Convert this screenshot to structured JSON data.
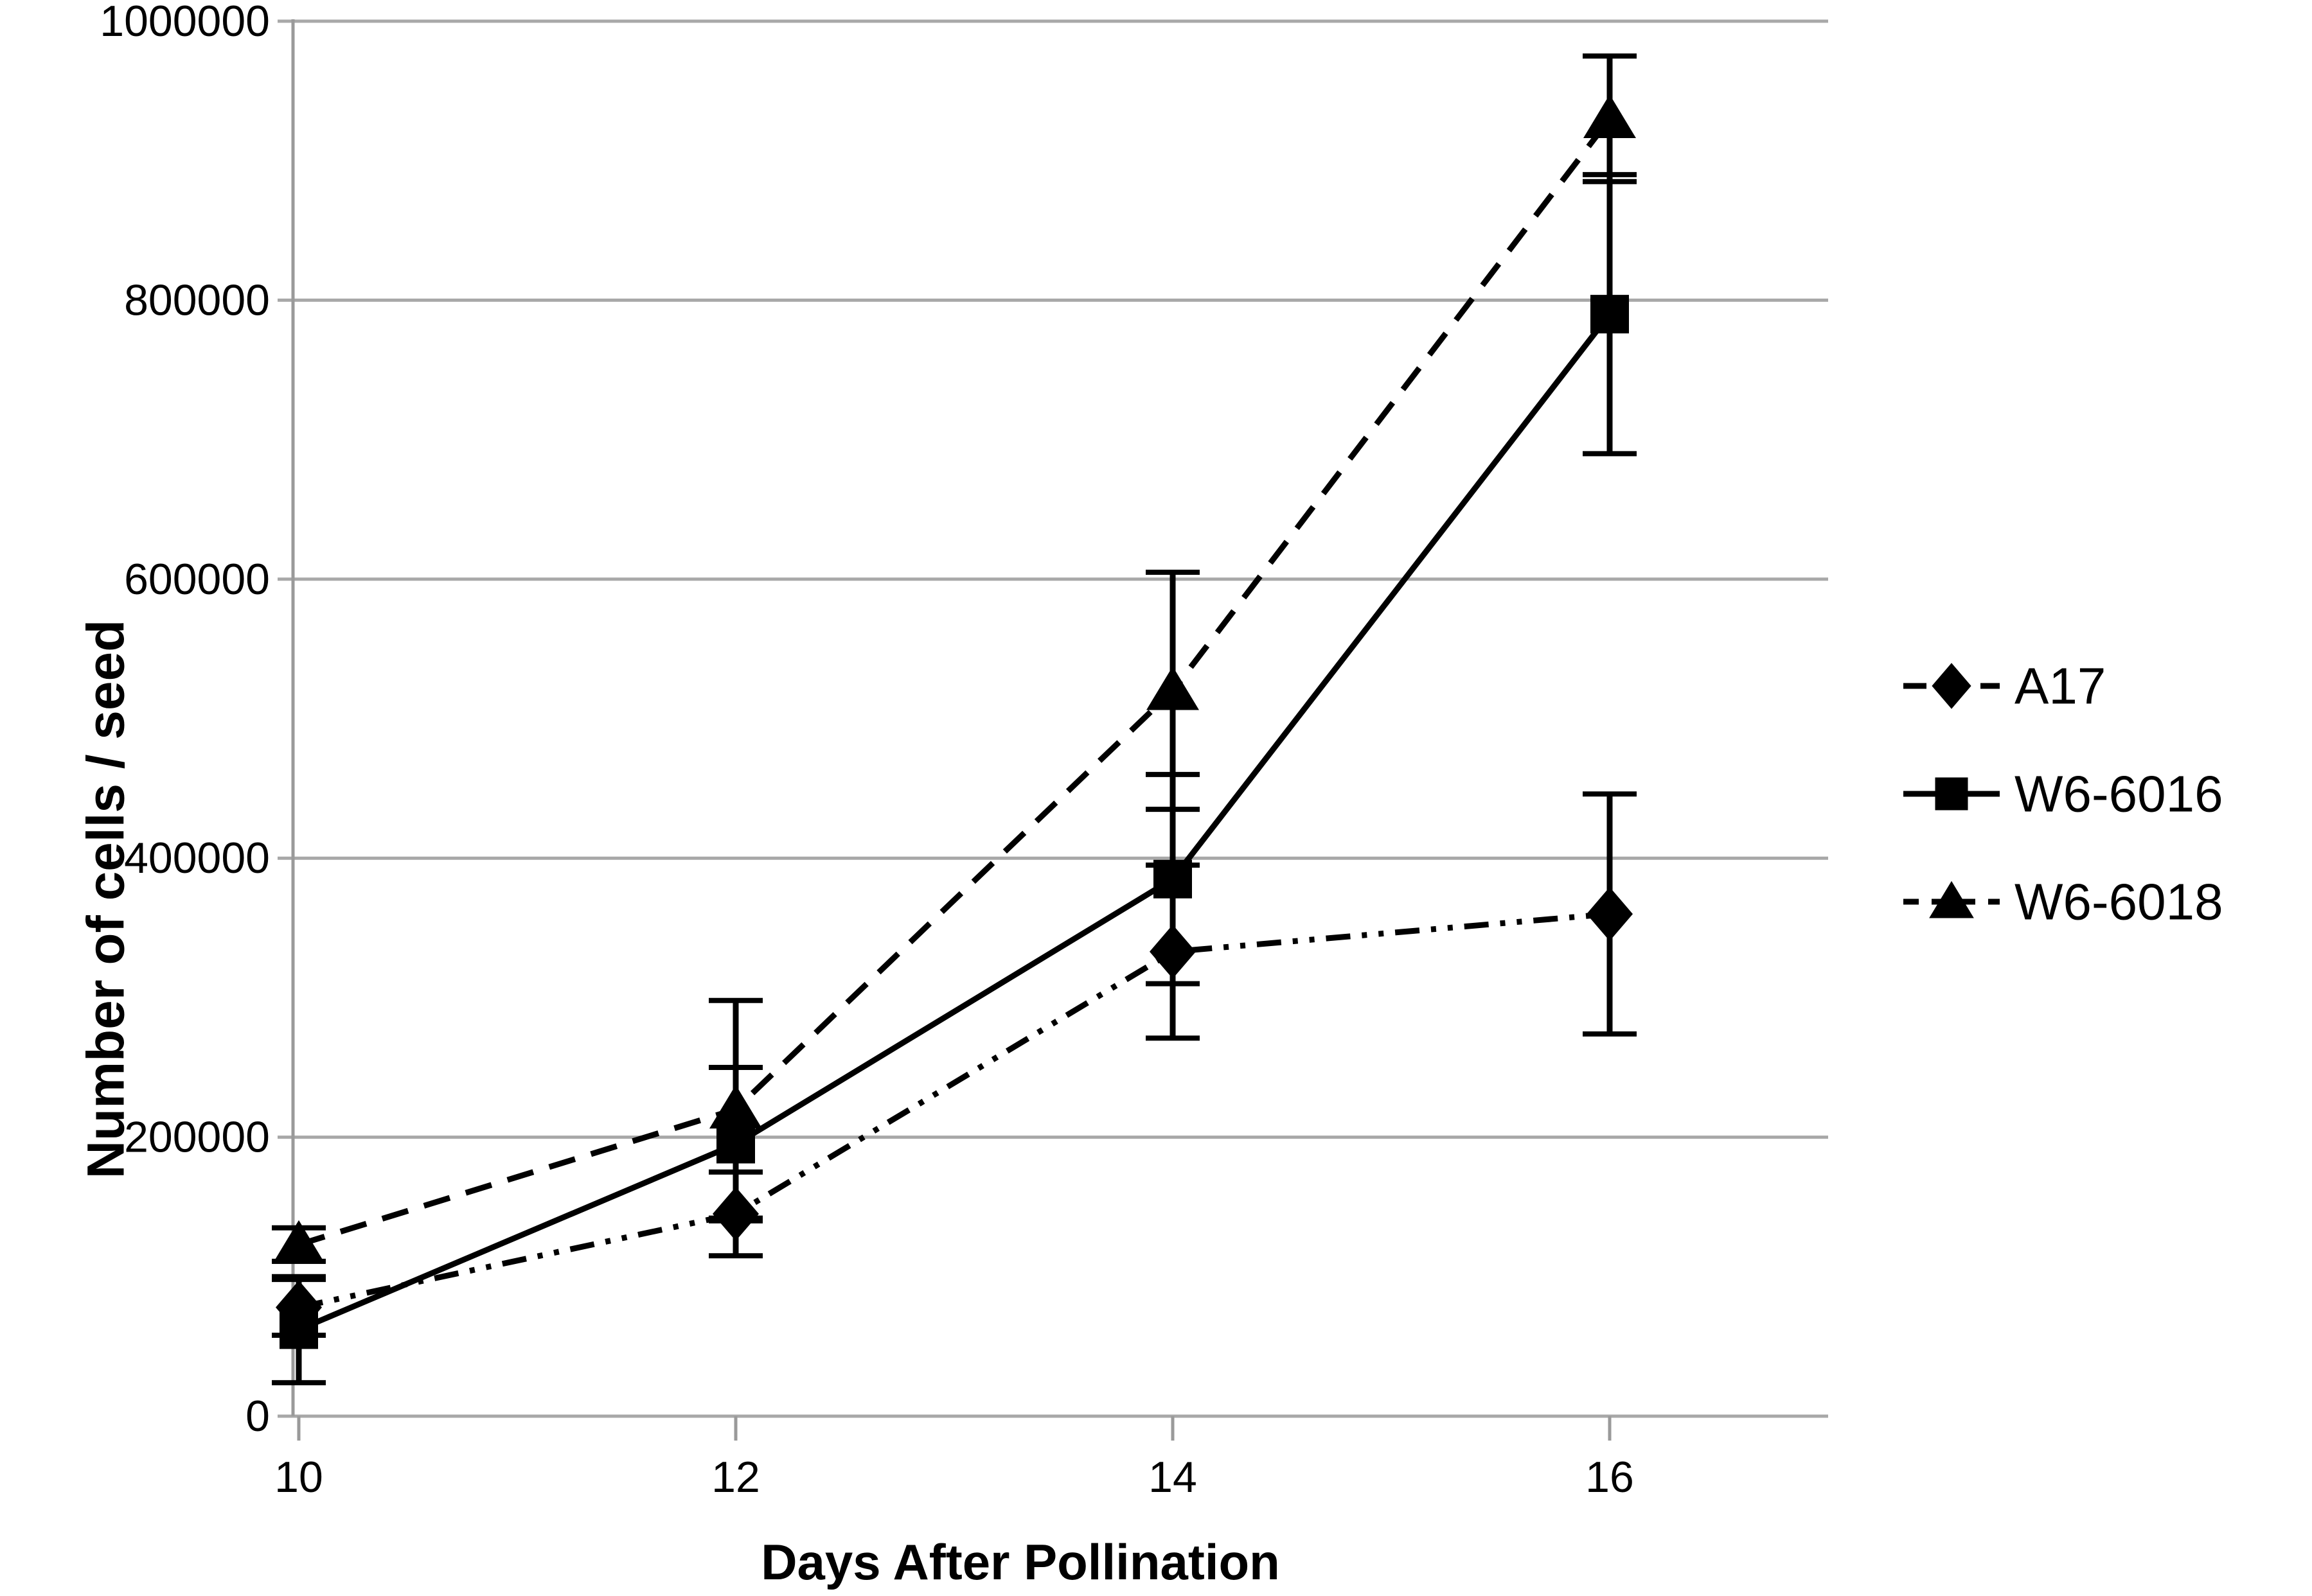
{
  "figure": {
    "background": "#ffffff",
    "text_color": "#000000",
    "gridline_color": "#a8a8a8",
    "axis_color": "#9a9a9a",
    "series_color": "#000000"
  },
  "chart_data": {
    "type": "line",
    "title": "",
    "xlabel": "Days After Pollination",
    "ylabel": "Number of cells / seed",
    "x": [
      10,
      12,
      14,
      16
    ],
    "x_tick_labels": [
      "10",
      "12",
      "14",
      "16"
    ],
    "ylim": [
      0,
      1000000
    ],
    "y_ticks": [
      0,
      200000,
      400000,
      600000,
      800000,
      1000000
    ],
    "y_tick_labels": [
      "0",
      "200000",
      "400000",
      "600000",
      "800000",
      "1000000"
    ],
    "grid": "horizontal",
    "legend_position": "right",
    "error_bars": true,
    "series": [
      {
        "name": "A17",
        "marker": "diamond",
        "line_style": "dash-dot-dot",
        "color": "#000000",
        "values": [
          78000,
          145000,
          333000,
          360000
        ],
        "errors": [
          20000,
          30000,
          62000,
          86000
        ]
      },
      {
        "name": "W6-6016",
        "marker": "square",
        "line_style": "solid",
        "color": "#000000",
        "values": [
          62000,
          195000,
          385000,
          790000
        ],
        "errors": [
          38000,
          55000,
          75000,
          100000
        ]
      },
      {
        "name": "W6-6018",
        "marker": "triangle",
        "line_style": "dashed",
        "color": "#000000",
        "values": [
          123000,
          220000,
          520000,
          930000
        ],
        "errors": [
          12000,
          78000,
          85000,
          45000
        ]
      }
    ]
  }
}
